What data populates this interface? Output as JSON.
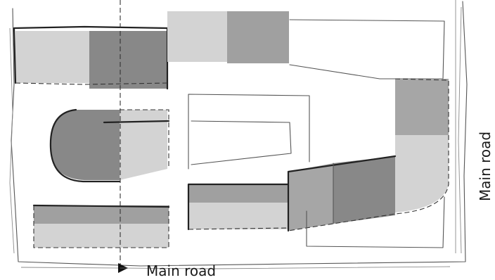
{
  "labels": {
    "road_bottom": "Main road",
    "road_right": "Main road"
  },
  "colors": {
    "light_fill": "#d3d3d3",
    "mid_fill": "#a6a6a6",
    "dark_fill": "#888888",
    "sketch_line": "#555555"
  }
}
